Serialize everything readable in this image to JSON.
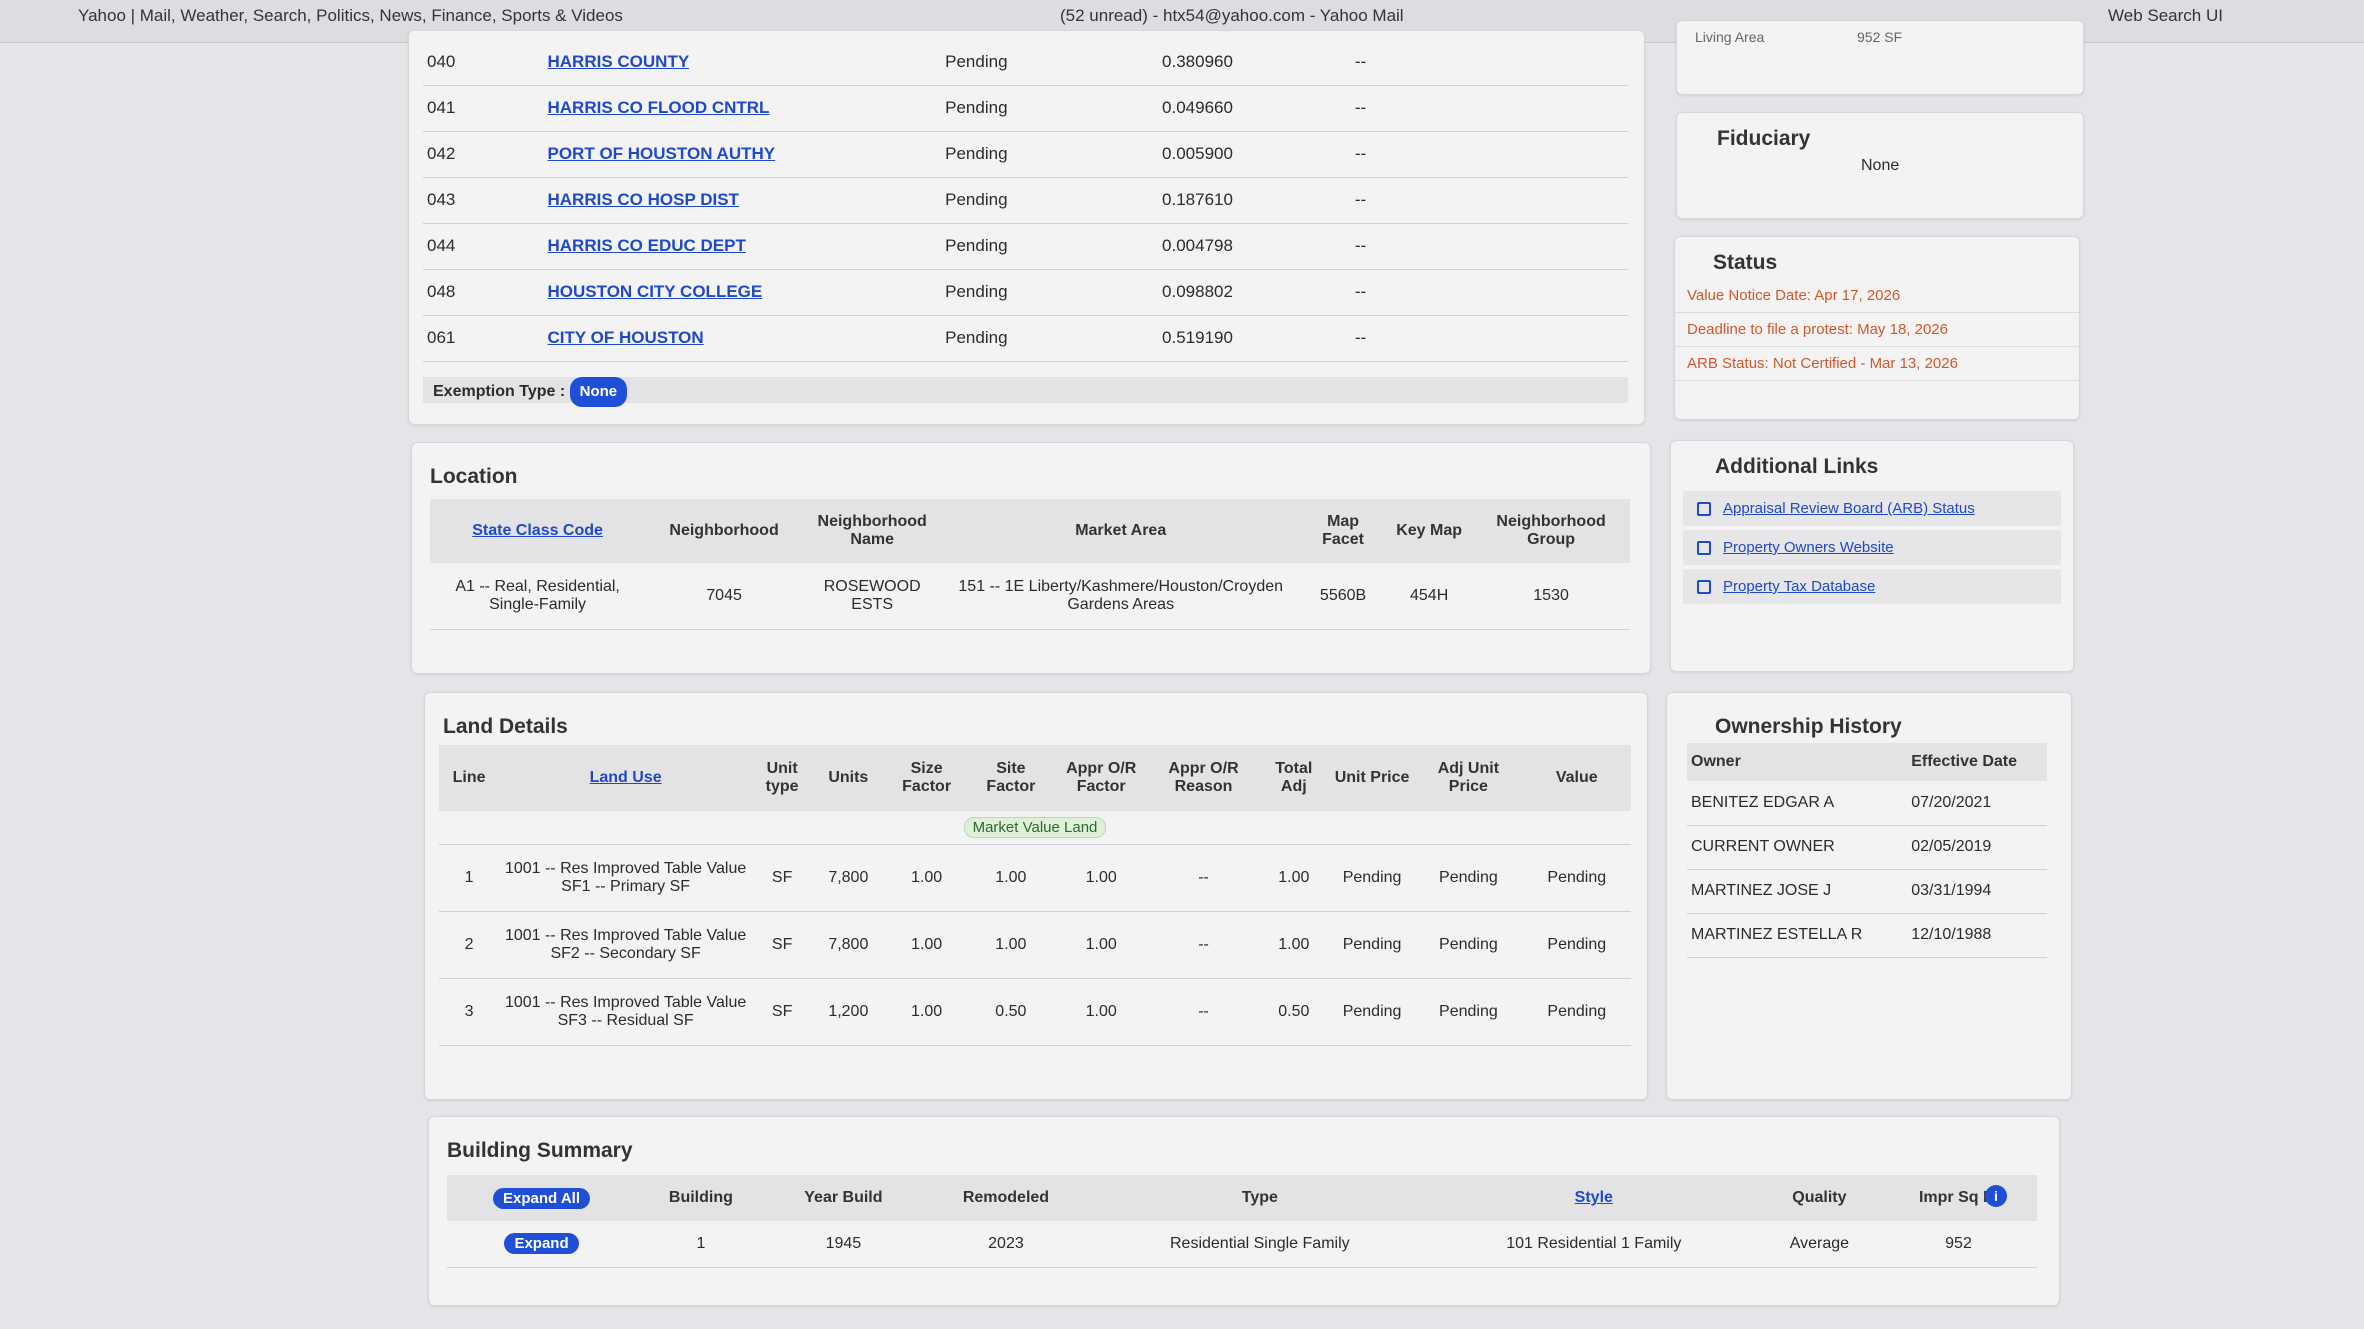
{
  "tabs": [
    "Yahoo | Mail, Weather, Search, Politics, News, Finance, Sports & Videos",
    "(52 unread) - htx54@yahoo.com - Yahoo Mail",
    "Web Search UI"
  ],
  "taxing_units": {
    "rows": [
      [
        "040",
        "HARRIS COUNTY",
        "Pending",
        "0.380960",
        "--"
      ],
      [
        "041",
        "HARRIS CO FLOOD CNTRL",
        "Pending",
        "0.049660",
        "--"
      ],
      [
        "042",
        "PORT OF HOUSTON AUTHY",
        "Pending",
        "0.005900",
        "--"
      ],
      [
        "043",
        "HARRIS CO HOSP DIST",
        "Pending",
        "0.187610",
        "--"
      ],
      [
        "044",
        "HARRIS CO EDUC DEPT",
        "Pending",
        "0.004798",
        "--"
      ],
      [
        "048",
        "HOUSTON CITY COLLEGE",
        "Pending",
        "0.098802",
        "--"
      ],
      [
        "061",
        "CITY OF HOUSTON",
        "Pending",
        "0.519190",
        "--"
      ]
    ]
  },
  "exemption": {
    "label": "Exemption Type :",
    "value": "None"
  },
  "summary_partial": {
    "label": "Living Area",
    "value": "952 SF"
  },
  "fiduciary": {
    "title": "Fiduciary",
    "value": "None"
  },
  "status": {
    "title": "Status",
    "items": [
      "Value Notice Date: Apr 17, 2026",
      "Deadline to file a protest: May 18, 2026",
      "ARB Status: Not Certified - Mar 13, 2026"
    ]
  },
  "additional_links": {
    "title": "Additional Links",
    "links": [
      "Appraisal Review Board (ARB) Status",
      "Property Owners Website",
      "Property Tax Database"
    ]
  },
  "location": {
    "title": "Location",
    "headers": [
      "State Class Code",
      "Neighborhood",
      "Neighborhood Name",
      "Market Area",
      "Map Facet",
      "Key Map",
      "Neighborhood Group"
    ],
    "rows": [
      [
        "A1 -- Real, Residential, Single-Family",
        "7045",
        "ROSEWOOD ESTS",
        "151 -- 1E Liberty/Kashmere/Houston/Croyden Gardens Areas",
        "5560B",
        "454H",
        "1530"
      ]
    ]
  },
  "land_details": {
    "title": "Land Details",
    "headers": [
      "Line",
      "Land Use",
      "Unit type",
      "Units",
      "Size Factor",
      "Site Factor",
      "Appr O/R Factor",
      "Appr O/R Reason",
      "Total Adj",
      "Unit Price",
      "Adj Unit Price",
      "Value"
    ],
    "group_label": "Market Value Land",
    "rows": [
      [
        "1",
        "1001 -- Res Improved Table Value SF1 -- Primary SF",
        "SF",
        "7,800",
        "1.00",
        "1.00",
        "1.00",
        "--",
        "1.00",
        "Pending",
        "Pending",
        "Pending"
      ],
      [
        "2",
        "1001 -- Res Improved Table Value SF2 -- Secondary SF",
        "SF",
        "7,800",
        "1.00",
        "1.00",
        "1.00",
        "--",
        "1.00",
        "Pending",
        "Pending",
        "Pending"
      ],
      [
        "3",
        "1001 -- Res Improved Table Value SF3 -- Residual SF",
        "SF",
        "1,200",
        "1.00",
        "0.50",
        "1.00",
        "--",
        "0.50",
        "Pending",
        "Pending",
        "Pending"
      ]
    ]
  },
  "ownership_history": {
    "title": "Ownership History",
    "headers": [
      "Owner",
      "Effective Date"
    ],
    "rows": [
      [
        "BENITEZ EDGAR A",
        "07/20/2021"
      ],
      [
        "CURRENT OWNER",
        "02/05/2019"
      ],
      [
        "MARTINEZ JOSE J",
        "03/31/1994"
      ],
      [
        "MARTINEZ ESTELLA R",
        "12/10/1988"
      ]
    ]
  },
  "building_summary": {
    "title": "Building Summary",
    "headers": [
      "Expand All",
      "Building",
      "Year Build",
      "Remodeled",
      "Type",
      "Style",
      "Quality",
      "Impr Sq Ft"
    ],
    "rows": [
      [
        "Expand",
        "1",
        "1945",
        "2023",
        "Residential Single Family",
        "101 Residential 1 Family",
        "Average",
        "952"
      ]
    ]
  }
}
